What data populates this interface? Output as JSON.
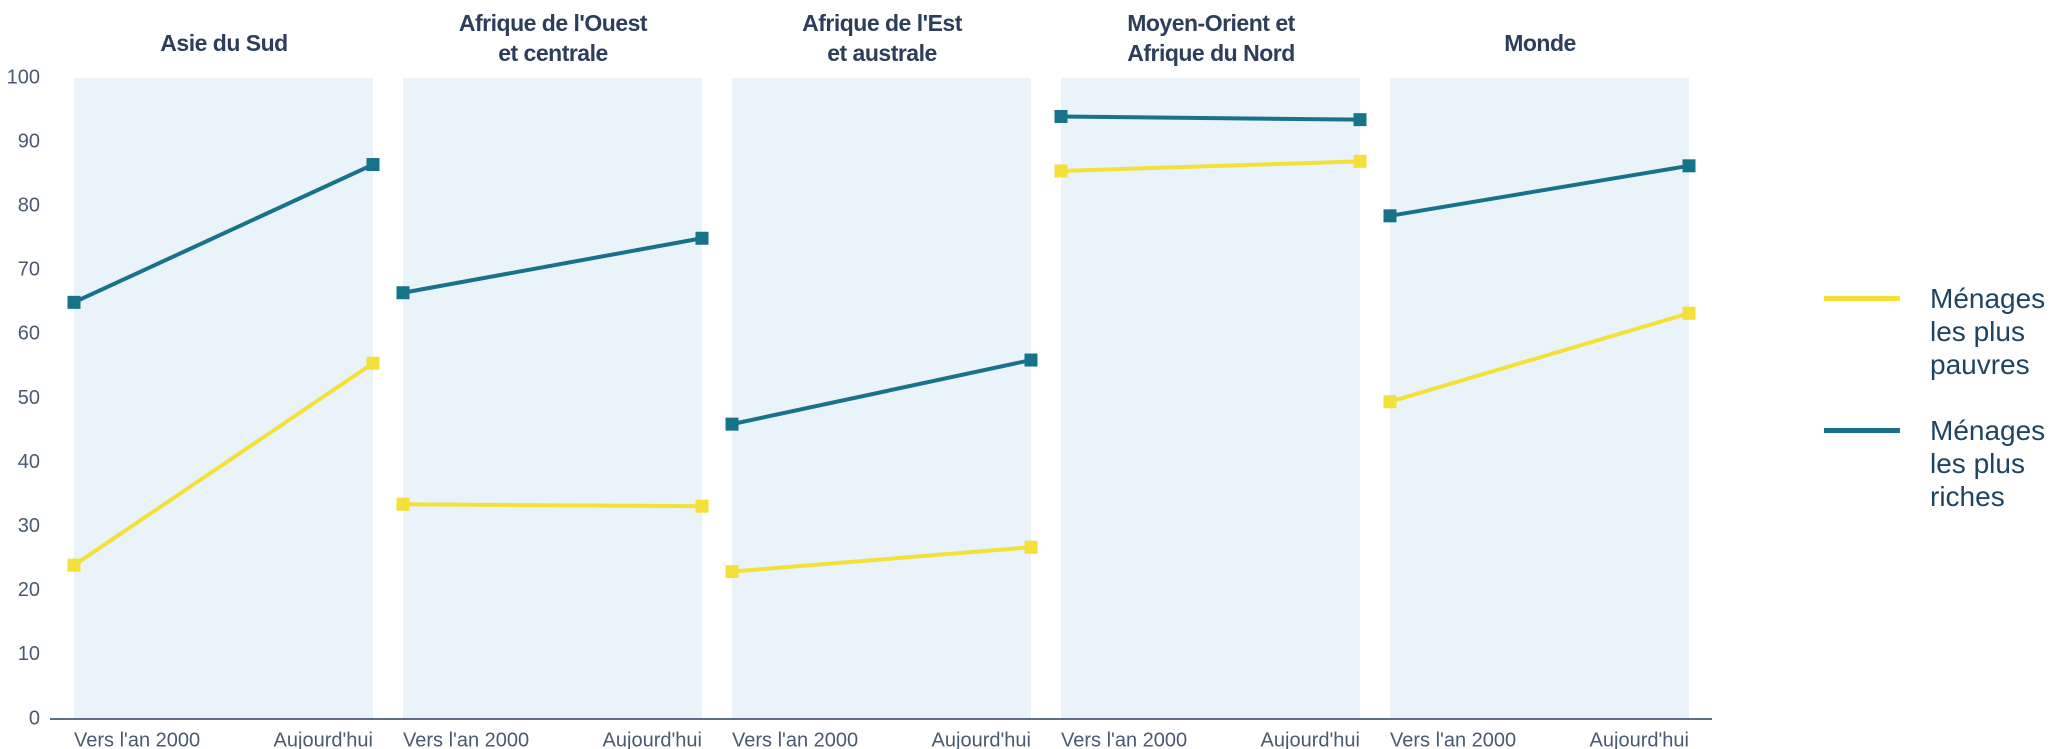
{
  "chart_data": {
    "type": "line",
    "ylim": [
      0,
      100
    ],
    "yticks": [
      0,
      10,
      20,
      30,
      40,
      50,
      60,
      70,
      80,
      90,
      100
    ],
    "categories": [
      "Vers l'an 2000",
      "Aujourd'hui"
    ],
    "panels": [
      "Asie du Sud",
      "Afrique de l'Ouest\net centrale",
      "Afrique de l'Est\net australe",
      "Moyen-Orient et\nAfrique du Nord",
      "Monde"
    ],
    "series": [
      {
        "name": "Ménages les plus pauvres",
        "color": "#f5e03a",
        "values": [
          [
            24,
            55.5
          ],
          [
            33.5,
            33.2
          ],
          [
            23,
            26.8
          ],
          [
            85.5,
            87
          ],
          [
            49.5,
            63.3
          ]
        ]
      },
      {
        "name": "Ménages les plus riches",
        "color": "#167389",
        "values": [
          [
            65,
            86.5
          ],
          [
            66.5,
            75
          ],
          [
            46,
            56
          ],
          [
            94,
            93.5
          ],
          [
            78.5,
            86.3
          ]
        ]
      }
    ]
  }
}
